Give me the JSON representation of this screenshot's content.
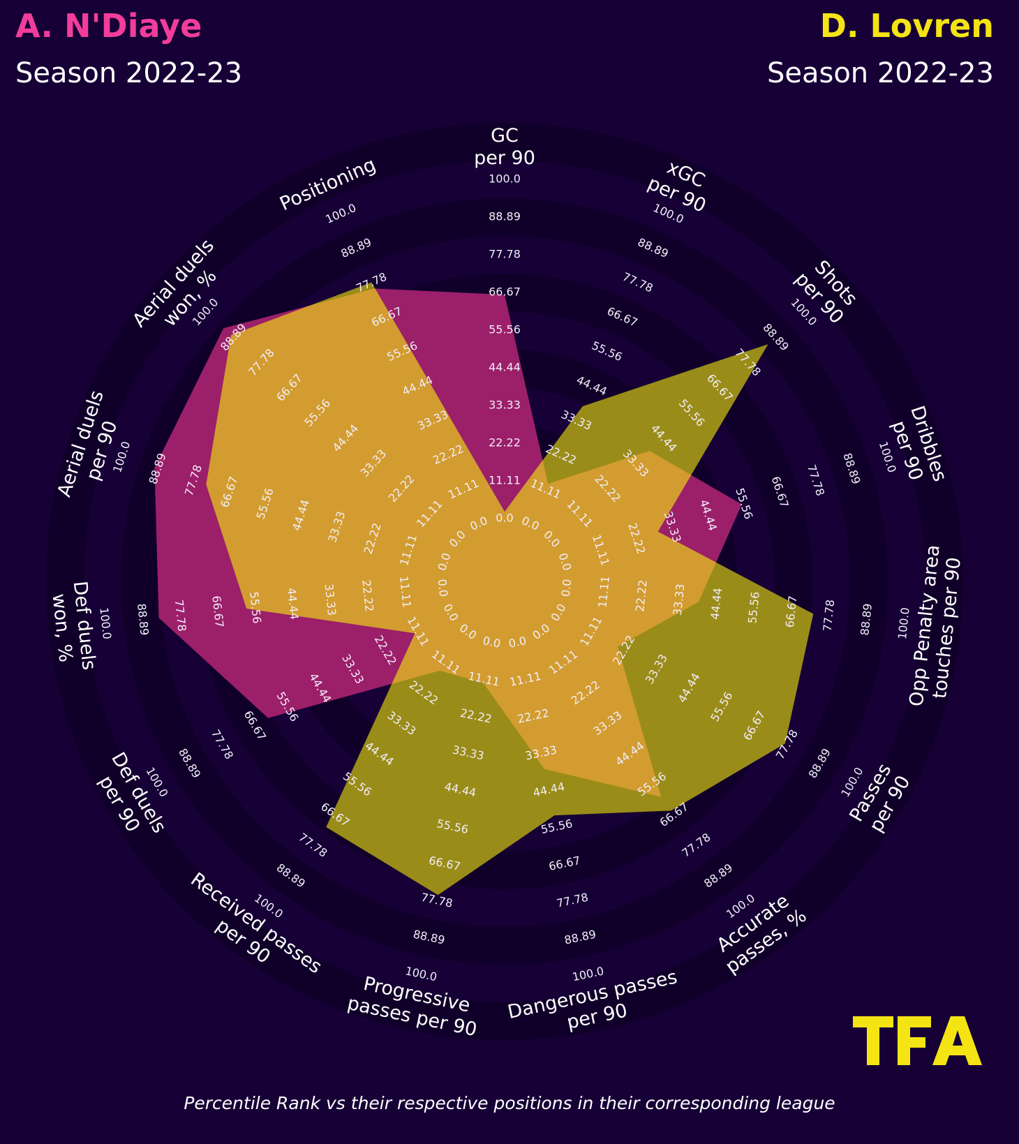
{
  "header": {
    "player1": {
      "name": "A. N'Diaye",
      "season": "Season 2022-23",
      "color": "#f23d9b"
    },
    "player2": {
      "name": "D. Lovren",
      "season": "Season 2022-23",
      "color": "#f5e414"
    }
  },
  "footer": "Percentile Rank vs their respective positions in their corresponding league",
  "logo": "TFA",
  "chart_data": {
    "type": "radar",
    "params": [
      "GC\nper 90",
      "xGC\nper 90",
      "Shots\nper 90",
      "Dribbles\nper 90",
      "Opp Penalty area\ntouches per 90",
      "Passes\nper 90",
      "Accurate\npasses, %",
      "Dangerous passes\nper 90",
      "Progressive\npasses per 90",
      "Received passes\nper 90",
      "Def duels\nper 90",
      "Def duels\nwon, %",
      "Aerial duels\nper 90",
      "Aerial duels\nwon, %",
      "Positioning"
    ],
    "ring_labels": [
      "0.0",
      "11.11",
      "22.22",
      "33.33",
      "44.44",
      "55.56",
      "66.67",
      "77.78",
      "88.89",
      "100.0"
    ],
    "range": [
      0,
      100
    ],
    "series": [
      {
        "name": "A. N'Diaye",
        "color": "#9c1f6a",
        "values": [
          66,
          13,
          39,
          55,
          39,
          20,
          60,
          38,
          12,
          14,
          62,
          84,
          90,
          93,
          76
        ]
      },
      {
        "name": "D. Lovren",
        "color": "#9a8c19",
        "values": [
          2,
          38,
          86,
          29,
          73,
          77,
          65,
          52,
          76,
          71,
          12,
          58,
          74,
          90,
          78
        ]
      }
    ],
    "overlap_color": "#d39c30"
  }
}
